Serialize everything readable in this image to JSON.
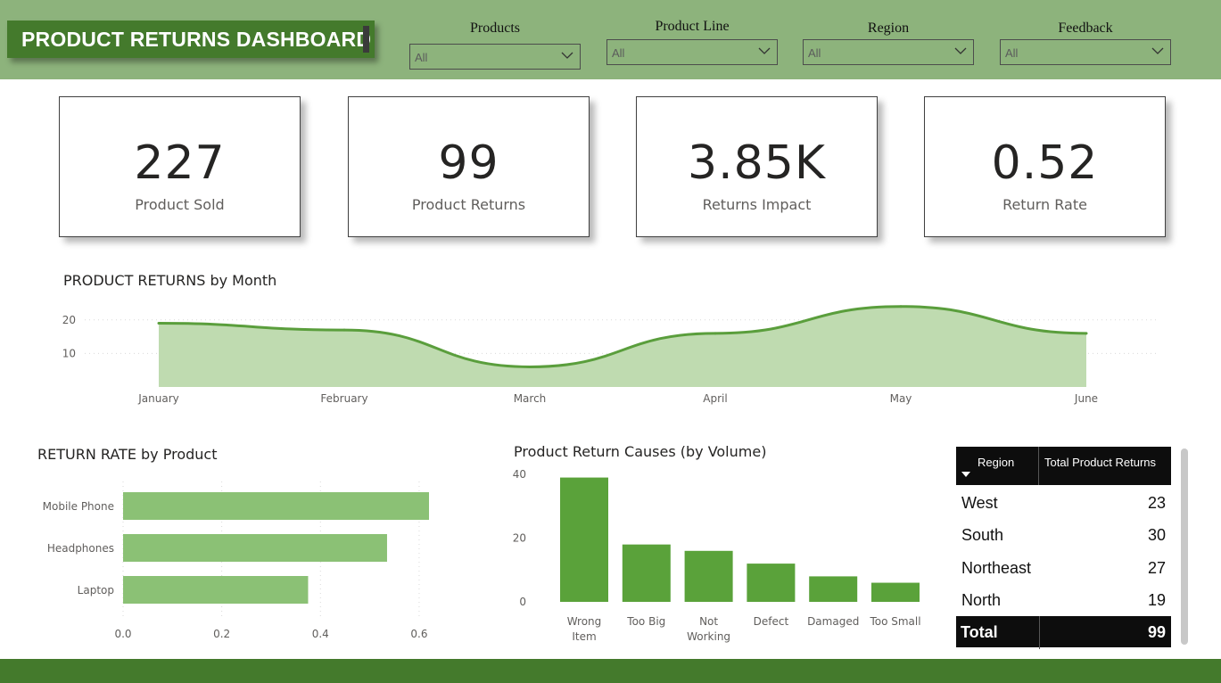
{
  "header": {
    "title": "PRODUCT RETURNS DASHBOARD",
    "bg_color": "#8db37c",
    "title_bg_color": "#447a2c"
  },
  "slicers": [
    {
      "label": "Products",
      "value": "All"
    },
    {
      "label": "Product Line",
      "value": "All"
    },
    {
      "label": "Region",
      "value": "All"
    },
    {
      "label": "Feedback",
      "value": "All"
    }
  ],
  "kpis": [
    {
      "value": "227",
      "label": "Product Sold"
    },
    {
      "value": "99",
      "label": "Product Returns"
    },
    {
      "value": "3.85K",
      "label": "Returns Impact"
    },
    {
      "value": "0.52",
      "label": "Return Rate"
    }
  ],
  "chart_data": [
    {
      "type": "area",
      "title": "PRODUCT RETURNS by Month",
      "categories": [
        "January",
        "February",
        "March",
        "April",
        "May",
        "June"
      ],
      "values": [
        19,
        17,
        6,
        16,
        24,
        16
      ],
      "yticks": [
        10,
        20
      ],
      "ylim": [
        0,
        25
      ],
      "grid": true,
      "line_color": "#5a9e3c",
      "fill_color": "#bfdbb0"
    },
    {
      "type": "bar",
      "orientation": "horizontal",
      "title": "RETURN RATE by Product",
      "categories": [
        "Mobile Phone",
        "Headphones",
        "Laptop"
      ],
      "values": [
        0.62,
        0.535,
        0.375
      ],
      "xticks": [
        "0.0",
        "0.2",
        "0.4",
        "0.6"
      ],
      "xlim": [
        0,
        0.7
      ],
      "grid": true,
      "bar_color": "#8bc175"
    },
    {
      "type": "bar",
      "title": "Product Return Causes (by Volume)",
      "categories": [
        "Wrong Item",
        "Too Big",
        "Not Working",
        "Defect",
        "Damaged",
        "Too Small"
      ],
      "category_lines": [
        [
          "Wrong",
          "Item"
        ],
        [
          "Too Big"
        ],
        [
          "Not",
          "Working"
        ],
        [
          "Defect"
        ],
        [
          "Damaged"
        ],
        [
          "Too Small"
        ]
      ],
      "values": [
        39,
        18,
        16,
        12,
        8,
        6
      ],
      "yticks": [
        0,
        20,
        40
      ],
      "ylim": [
        0,
        42
      ],
      "bar_color": "#5aa23a"
    }
  ],
  "table": {
    "headers": [
      "Region",
      "Total Product Returns"
    ],
    "rows": [
      {
        "region": "West",
        "returns": "23"
      },
      {
        "region": "South",
        "returns": "30"
      },
      {
        "region": "Northeast",
        "returns": "27"
      },
      {
        "region": "North",
        "returns": "19"
      }
    ],
    "total_label": "Total",
    "total_value": "99"
  },
  "icons": {
    "slicer_dropdown": "chevron-down-icon",
    "table_sort": "sort-desc-icon"
  }
}
